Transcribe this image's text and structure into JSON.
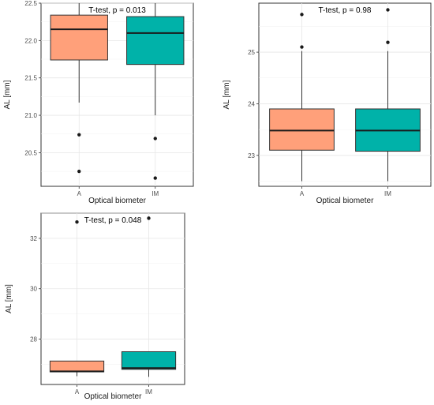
{
  "colors": {
    "A": "#FFA07A",
    "IM": "#00B2A9"
  },
  "chart_data": [
    {
      "type": "boxplot",
      "annotation": "T-test, p = 0.013",
      "xlabel": "Optical biometer",
      "ylabel": "AL [mm]",
      "categories": [
        "A",
        "IM"
      ],
      "ylim": [
        20.05,
        22.5
      ],
      "yticks": [
        20.5,
        21.0,
        21.5,
        22.0,
        22.5
      ],
      "ytick_labels": [
        "20.5",
        "21.0",
        "21.5",
        "22.0",
        "22.5"
      ],
      "series": [
        {
          "category": "A",
          "whisker_low": 21.17,
          "q1": 21.74,
          "median": 22.15,
          "q3": 22.34,
          "whisker_high": 22.5,
          "outliers": [
            20.74,
            20.25
          ]
        },
        {
          "category": "IM",
          "whisker_low": 21.0,
          "q1": 21.68,
          "median": 22.1,
          "q3": 22.32,
          "whisker_high": 22.5,
          "outliers": [
            20.69,
            20.16
          ]
        }
      ]
    },
    {
      "type": "boxplot",
      "annotation": "T-test, p = 0.98",
      "xlabel": "Optical biometer",
      "ylabel": "AL [mm]",
      "categories": [
        "A",
        "IM"
      ],
      "ylim": [
        22.4,
        25.95
      ],
      "yticks": [
        23,
        24,
        25
      ],
      "ytick_labels": [
        "23",
        "24",
        "25"
      ],
      "series": [
        {
          "category": "A",
          "whisker_low": 22.5,
          "q1": 23.1,
          "median": 23.48,
          "q3": 23.9,
          "whisker_high": 25.02,
          "outliers": [
            25.1,
            25.73
          ]
        },
        {
          "category": "IM",
          "whisker_low": 22.5,
          "q1": 23.08,
          "median": 23.48,
          "q3": 23.9,
          "whisker_high": 25.02,
          "outliers": [
            25.19,
            25.82
          ]
        }
      ]
    },
    {
      "type": "boxplot",
      "annotation": "T-test, p = 0.048",
      "xlabel": "Optical biometer",
      "ylabel": "AL [mm]",
      "categories": [
        "A",
        "IM"
      ],
      "ylim": [
        26.2,
        33.0
      ],
      "yticks": [
        28,
        30,
        32
      ],
      "ytick_labels": [
        "28",
        "30",
        "32"
      ],
      "series": [
        {
          "category": "A",
          "whisker_low": 26.53,
          "q1": 26.7,
          "median": 26.72,
          "q3": 27.13,
          "whisker_high": 27.13,
          "outliers": [
            32.65
          ]
        },
        {
          "category": "IM",
          "whisker_low": 26.5,
          "q1": 26.8,
          "median": 26.85,
          "q3": 27.5,
          "whisker_high": 27.5,
          "outliers": [
            32.8
          ]
        }
      ]
    }
  ]
}
